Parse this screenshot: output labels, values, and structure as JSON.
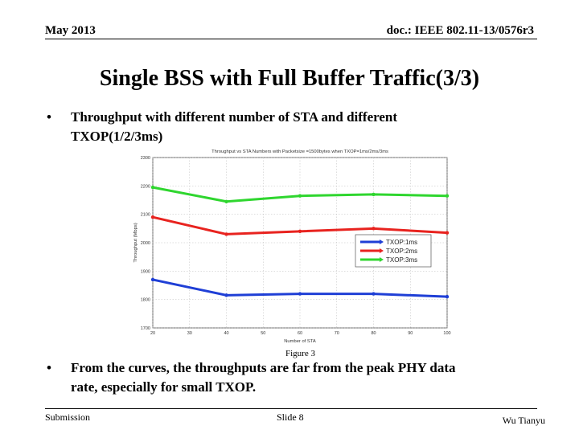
{
  "header": {
    "date": "May 2013",
    "doc_id": "doc.: IEEE 802.11-13/0576r3"
  },
  "slide_title": "Single BSS with Full Buffer Traffic(3/3)",
  "bullets": [
    {
      "marker": "•",
      "line1": "Throughput with different number of STA and different",
      "line2": "TXOP(1/2/3ms)"
    },
    {
      "marker": "•",
      "line1": "From the curves, the throughputs are far from the peak PHY data",
      "line2": "rate,  especially for small TXOP."
    }
  ],
  "figure_caption": "Figure 3",
  "footer": {
    "left": "Submission",
    "center": "Slide 8",
    "right": "Wu Tianyu"
  },
  "chart_data": {
    "type": "line",
    "title": "Throughput vs STA Numbers with Packetsize =1500bytes when TXOP=1ms/2ms/3ms",
    "xlabel": "Number of STA",
    "ylabel": "Throughput (Mbps)",
    "xlim": [
      20,
      100
    ],
    "ylim": [
      1700,
      2300
    ],
    "x_ticks": [
      20,
      30,
      40,
      50,
      60,
      70,
      80,
      90,
      100
    ],
    "y_ticks": [
      1700,
      1800,
      1900,
      2000,
      2100,
      2200,
      2300
    ],
    "x": [
      20,
      40,
      60,
      80,
      100
    ],
    "series": [
      {
        "name": "TXOP:1ms",
        "color": "#1f3fd6",
        "values": [
          1870,
          1815,
          1820,
          1820,
          1810
        ]
      },
      {
        "name": "TXOP:2ms",
        "color": "#e8231f",
        "values": [
          2090,
          2030,
          2040,
          2050,
          2035
        ]
      },
      {
        "name": "TXOP:3ms",
        "color": "#2fd62f",
        "values": [
          2195,
          2145,
          2165,
          2170,
          2165
        ]
      }
    ],
    "grid": true,
    "legend_position": "right"
  }
}
